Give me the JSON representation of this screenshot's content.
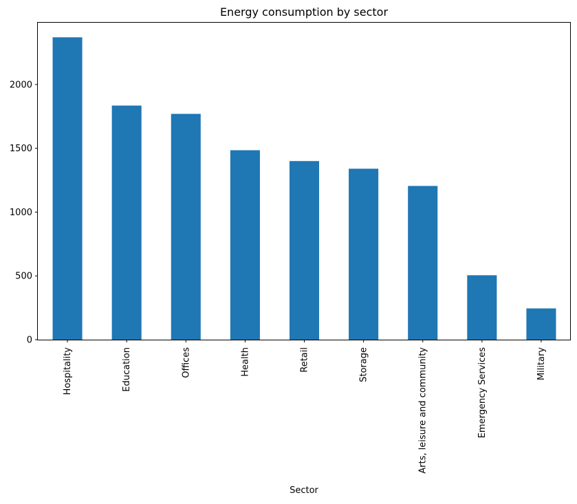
{
  "chart_data": {
    "type": "bar",
    "title": "Energy consumption by sector",
    "xlabel": "Sector",
    "ylabel": "",
    "categories": [
      "Hospitality",
      "Education",
      "Offices",
      "Health",
      "Retail",
      "Storage",
      "Arts, leisure and community",
      "Emergency Services",
      "Military"
    ],
    "values": [
      2370,
      1835,
      1770,
      1485,
      1400,
      1340,
      1205,
      505,
      245
    ],
    "ylim": [
      0,
      2490
    ],
    "yticks": [
      0,
      500,
      1000,
      1500,
      2000
    ],
    "grid": false,
    "legend": "none",
    "bar_color": "#1f77b4"
  }
}
